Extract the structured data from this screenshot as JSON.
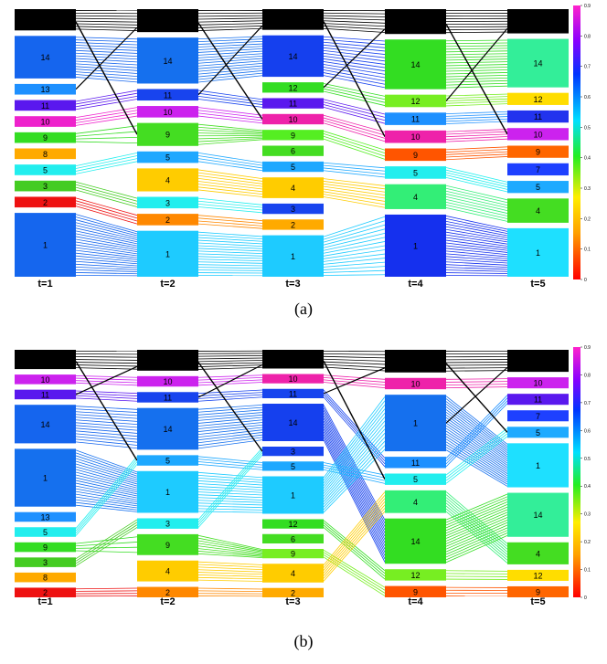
{
  "figure": {
    "caption_a": "(a)",
    "caption_b": "(b)"
  },
  "chart_data": [
    {
      "type": "sankey",
      "panel": "a",
      "time_steps": [
        "t=1",
        "t=2",
        "t=3",
        "t=4",
        "t=5"
      ],
      "colorbar": {
        "min": 0,
        "max": 0.9,
        "ticks": [
          "0",
          "0.1",
          "0.2",
          "0.3",
          "0.4",
          "0.5",
          "0.6",
          "0.7",
          "0.8",
          "0.9"
        ]
      },
      "columns": [
        {
          "label": "t=1",
          "nodes": [
            {
              "id": "",
              "color": "#000000",
              "size": 2
            },
            {
              "id": "14",
              "color": "#1565ee",
              "size": 4
            },
            {
              "id": "13",
              "color": "#1e90ff",
              "size": 1
            },
            {
              "id": "11",
              "color": "#5a18ee",
              "size": 1
            },
            {
              "id": "10",
              "color": "#ee22cc",
              "size": 1
            },
            {
              "id": "9",
              "color": "#33dd22",
              "size": 1
            },
            {
              "id": "8",
              "color": "#ffaa00",
              "size": 1
            },
            {
              "id": "5",
              "color": "#22eeee",
              "size": 1
            },
            {
              "id": "3",
              "color": "#44cc22",
              "size": 1
            },
            {
              "id": "2",
              "color": "#ee1111",
              "size": 1
            },
            {
              "id": "1",
              "color": "#1566ee",
              "size": 6
            }
          ]
        },
        {
          "label": "t=2",
          "nodes": [
            {
              "id": "",
              "color": "#000000",
              "size": 2
            },
            {
              "id": "14",
              "color": "#1570ee",
              "size": 4
            },
            {
              "id": "11",
              "color": "#1844ee",
              "size": 1
            },
            {
              "id": "10",
              "color": "#cc22ee",
              "size": 1
            },
            {
              "id": "9",
              "color": "#44dd22",
              "size": 2
            },
            {
              "id": "5",
              "color": "#1ea8ff",
              "size": 1
            },
            {
              "id": "4",
              "color": "#ffcc00",
              "size": 2
            },
            {
              "id": "3",
              "color": "#22eeee",
              "size": 1
            },
            {
              "id": "2",
              "color": "#ff8800",
              "size": 1
            },
            {
              "id": "1",
              "color": "#1ecbff",
              "size": 4
            }
          ]
        },
        {
          "label": "t=3",
          "nodes": [
            {
              "id": "",
              "color": "#000000",
              "size": 2
            },
            {
              "id": "14",
              "color": "#1540ee",
              "size": 4
            },
            {
              "id": "12",
              "color": "#33dd22",
              "size": 1
            },
            {
              "id": "11",
              "color": "#5a18ee",
              "size": 1
            },
            {
              "id": "10",
              "color": "#ee22aa",
              "size": 1
            },
            {
              "id": "9",
              "color": "#55ee22",
              "size": 1
            },
            {
              "id": "6",
              "color": "#44dd22",
              "size": 1
            },
            {
              "id": "5",
              "color": "#1ea8ff",
              "size": 1
            },
            {
              "id": "4",
              "color": "#ffcc00",
              "size": 2
            },
            {
              "id": "3",
              "color": "#1844ee",
              "size": 1
            },
            {
              "id": "2",
              "color": "#ffaa00",
              "size": 1
            },
            {
              "id": "1",
              "color": "#1ecbff",
              "size": 4
            }
          ]
        },
        {
          "label": "t=4",
          "nodes": [
            {
              "id": "",
              "color": "#000000",
              "size": 2
            },
            {
              "id": "14",
              "color": "#33dd22",
              "size": 4
            },
            {
              "id": "12",
              "color": "#77ee22",
              "size": 1
            },
            {
              "id": "11",
              "color": "#1e90ff",
              "size": 1
            },
            {
              "id": "10",
              "color": "#ee22aa",
              "size": 1
            },
            {
              "id": "9",
              "color": "#ff5500",
              "size": 1
            },
            {
              "id": "5",
              "color": "#22eeee",
              "size": 1
            },
            {
              "id": "4",
              "color": "#33ee77",
              "size": 2
            },
            {
              "id": "1",
              "color": "#1530ee",
              "size": 5
            }
          ]
        },
        {
          "label": "t=5",
          "nodes": [
            {
              "id": "",
              "color": "#000000",
              "size": 2
            },
            {
              "id": "14",
              "color": "#33ee99",
              "size": 4
            },
            {
              "id": "12",
              "color": "#ffdd00",
              "size": 1
            },
            {
              "id": "11",
              "color": "#2233ee",
              "size": 1
            },
            {
              "id": "10",
              "color": "#cc22ee",
              "size": 1
            },
            {
              "id": "9",
              "color": "#ff6600",
              "size": 1
            },
            {
              "id": "7",
              "color": "#1e40ff",
              "size": 1
            },
            {
              "id": "5",
              "color": "#1eaaff",
              "size": 1
            },
            {
              "id": "4",
              "color": "#44dd22",
              "size": 2
            },
            {
              "id": "1",
              "color": "#1ee0ff",
              "size": 4
            }
          ]
        }
      ]
    },
    {
      "type": "sankey",
      "panel": "b",
      "time_steps": [
        "t=1",
        "t=2",
        "t=3",
        "t=4",
        "t=5"
      ],
      "colorbar": {
        "min": 0,
        "max": 0.9,
        "ticks": [
          "0",
          "0.1",
          "0.2",
          "0.3",
          "0.4",
          "0.5",
          "0.6",
          "0.7",
          "0.8",
          "0.9"
        ]
      },
      "columns": [
        {
          "label": "t=1",
          "nodes": [
            {
              "id": "",
              "color": "#000000",
              "size": 2
            },
            {
              "id": "10",
              "color": "#cc22ee",
              "size": 1
            },
            {
              "id": "11",
              "color": "#5a18ee",
              "size": 1
            },
            {
              "id": "14",
              "color": "#1565ee",
              "size": 4
            },
            {
              "id": "1",
              "color": "#1570ee",
              "size": 6
            },
            {
              "id": "13",
              "color": "#1e90ff",
              "size": 1
            },
            {
              "id": "5",
              "color": "#22eeee",
              "size": 1
            },
            {
              "id": "9",
              "color": "#33dd22",
              "size": 1
            },
            {
              "id": "3",
              "color": "#44cc22",
              "size": 1
            },
            {
              "id": "8",
              "color": "#ffaa00",
              "size": 1
            },
            {
              "id": "2",
              "color": "#ee1111",
              "size": 1
            }
          ]
        },
        {
          "label": "t=2",
          "nodes": [
            {
              "id": "",
              "color": "#000000",
              "size": 2
            },
            {
              "id": "10",
              "color": "#cc22ee",
              "size": 1
            },
            {
              "id": "11",
              "color": "#1844ee",
              "size": 1
            },
            {
              "id": "14",
              "color": "#1570ee",
              "size": 4
            },
            {
              "id": "5",
              "color": "#1ea8ff",
              "size": 1
            },
            {
              "id": "1",
              "color": "#1ecbff",
              "size": 4
            },
            {
              "id": "3",
              "color": "#22eeee",
              "size": 1
            },
            {
              "id": "9",
              "color": "#44dd22",
              "size": 2
            },
            {
              "id": "4",
              "color": "#ffcc00",
              "size": 2
            },
            {
              "id": "2",
              "color": "#ff8800",
              "size": 1
            }
          ]
        },
        {
          "label": "t=3",
          "nodes": [
            {
              "id": "",
              "color": "#000000",
              "size": 2
            },
            {
              "id": "10",
              "color": "#ee22aa",
              "size": 1
            },
            {
              "id": "11",
              "color": "#1844ee",
              "size": 1
            },
            {
              "id": "14",
              "color": "#1540ee",
              "size": 4
            },
            {
              "id": "3",
              "color": "#1844ee",
              "size": 1
            },
            {
              "id": "5",
              "color": "#1ea8ff",
              "size": 1
            },
            {
              "id": "1",
              "color": "#1ecbff",
              "size": 4
            },
            {
              "id": "12",
              "color": "#33dd22",
              "size": 1
            },
            {
              "id": "6",
              "color": "#44dd22",
              "size": 1
            },
            {
              "id": "9",
              "color": "#77ee22",
              "size": 1
            },
            {
              "id": "4",
              "color": "#ffcc00",
              "size": 2
            },
            {
              "id": "2",
              "color": "#ffaa00",
              "size": 1
            }
          ]
        },
        {
          "label": "t=4",
          "nodes": [
            {
              "id": "",
              "color": "#000000",
              "size": 2
            },
            {
              "id": "10",
              "color": "#ee22aa",
              "size": 1
            },
            {
              "id": "1",
              "color": "#1570ee",
              "size": 5
            },
            {
              "id": "11",
              "color": "#1e90ff",
              "size": 1
            },
            {
              "id": "5",
              "color": "#22eeee",
              "size": 1
            },
            {
              "id": "4",
              "color": "#33ee77",
              "size": 2
            },
            {
              "id": "14",
              "color": "#33dd22",
              "size": 4
            },
            {
              "id": "12",
              "color": "#77ee22",
              "size": 1
            },
            {
              "id": "9",
              "color": "#ff5500",
              "size": 1
            }
          ]
        },
        {
          "label": "t=5",
          "nodes": [
            {
              "id": "",
              "color": "#000000",
              "size": 2
            },
            {
              "id": "10",
              "color": "#cc22ee",
              "size": 1
            },
            {
              "id": "11",
              "color": "#5a18ee",
              "size": 1
            },
            {
              "id": "7",
              "color": "#1e40ff",
              "size": 1
            },
            {
              "id": "5",
              "color": "#1eaaff",
              "size": 1
            },
            {
              "id": "1",
              "color": "#1ee0ff",
              "size": 4
            },
            {
              "id": "14",
              "color": "#33ee99",
              "size": 4
            },
            {
              "id": "4",
              "color": "#44dd22",
              "size": 2
            },
            {
              "id": "12",
              "color": "#ffdd00",
              "size": 1
            },
            {
              "id": "9",
              "color": "#ff6600",
              "size": 1
            }
          ]
        }
      ]
    }
  ]
}
